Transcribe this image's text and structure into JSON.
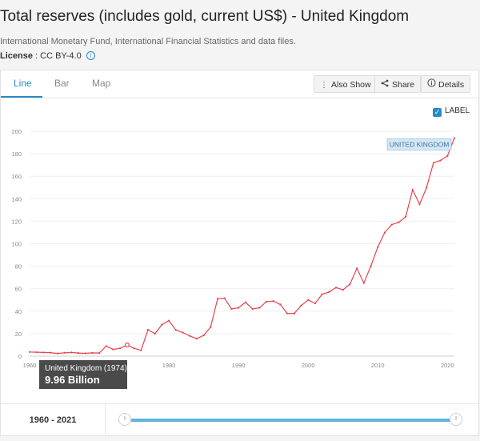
{
  "header": {
    "title": "Total reserves (includes gold, current US$) - United Kingdom",
    "source": "International Monetary Fund, International Financial Statistics and data files.",
    "license_label": "License",
    "license_value": " : CC BY-4.0 ",
    "license_info_icon": "i"
  },
  "tabs": [
    {
      "label": "Line",
      "active": true
    },
    {
      "label": "Bar",
      "active": false
    },
    {
      "label": "Map",
      "active": false
    }
  ],
  "toolbar": {
    "also_show": "Also Show",
    "share": "Share",
    "details": "Details",
    "icons": {
      "also_show": "vertical-dots-icon",
      "share": "share-icon",
      "details": "info-icon"
    }
  },
  "label_toggle": {
    "label": "LABEL",
    "checked": true,
    "check_glyph": "✓"
  },
  "tooltip": {
    "title": "United Kingdom (1974)",
    "value": "9.96 Billion"
  },
  "range": {
    "label": "1960 - 2021",
    "start": 1960,
    "end": 2021,
    "handle_glyph": "⦀"
  },
  "colors": {
    "accent": "#2a8ac4",
    "series": "#e8424e",
    "slider": "#5fb3e0"
  },
  "chart_data": {
    "type": "line",
    "title": "Total reserves (includes gold, current US$) - United Kingdom",
    "xlabel": "",
    "ylabel": "",
    "unit": "Billion US$",
    "xlim": [
      1960,
      2021
    ],
    "ylim": [
      0,
      200
    ],
    "yticks": [
      0,
      20,
      40,
      60,
      80,
      100,
      120,
      140,
      160,
      180,
      200
    ],
    "xticks": [
      1960,
      1970,
      1980,
      1990,
      2000,
      2010,
      2020
    ],
    "xtick_labels": [
      "1960",
      "",
      "1980",
      "1990",
      "2000",
      "2010",
      "2020"
    ],
    "series": [
      {
        "name": "United Kingdom",
        "label": "UNITED KINGDOM",
        "x": [
          1960,
          1961,
          1962,
          1963,
          1964,
          1965,
          1966,
          1967,
          1968,
          1969,
          1970,
          1971,
          1972,
          1973,
          1974,
          1975,
          1976,
          1977,
          1978,
          1979,
          1980,
          1981,
          1982,
          1983,
          1984,
          1985,
          1986,
          1987,
          1988,
          1989,
          1990,
          1991,
          1992,
          1993,
          1994,
          1995,
          1996,
          1997,
          1998,
          1999,
          2000,
          2001,
          2002,
          2003,
          2004,
          2005,
          2006,
          2007,
          2008,
          2009,
          2010,
          2011,
          2012,
          2013,
          2014,
          2015,
          2016,
          2017,
          2018,
          2019,
          2020,
          2021
        ],
        "values": [
          3.7,
          3.5,
          3.3,
          3.1,
          2.4,
          3.0,
          3.3,
          2.8,
          2.5,
          2.9,
          2.8,
          8.9,
          6.0,
          7.0,
          9.96,
          7.0,
          5.1,
          23.5,
          20.0,
          28.0,
          31.6,
          23.3,
          21.0,
          18.0,
          15.5,
          18.5,
          26.0,
          51.0,
          51.5,
          42.0,
          43.0,
          48.0,
          42.0,
          43.0,
          48.5,
          49.0,
          46.0,
          38.0,
          38.0,
          45.0,
          50.0,
          47.0,
          55.0,
          57.0,
          61.0,
          59.0,
          64.0,
          78.0,
          65.0,
          80.0,
          97.0,
          110.0,
          117.0,
          119.0,
          124.0,
          148.0,
          135.0,
          150.0,
          172.0,
          174.0,
          178.0,
          194.0
        ],
        "highlight_index": 14
      }
    ]
  }
}
